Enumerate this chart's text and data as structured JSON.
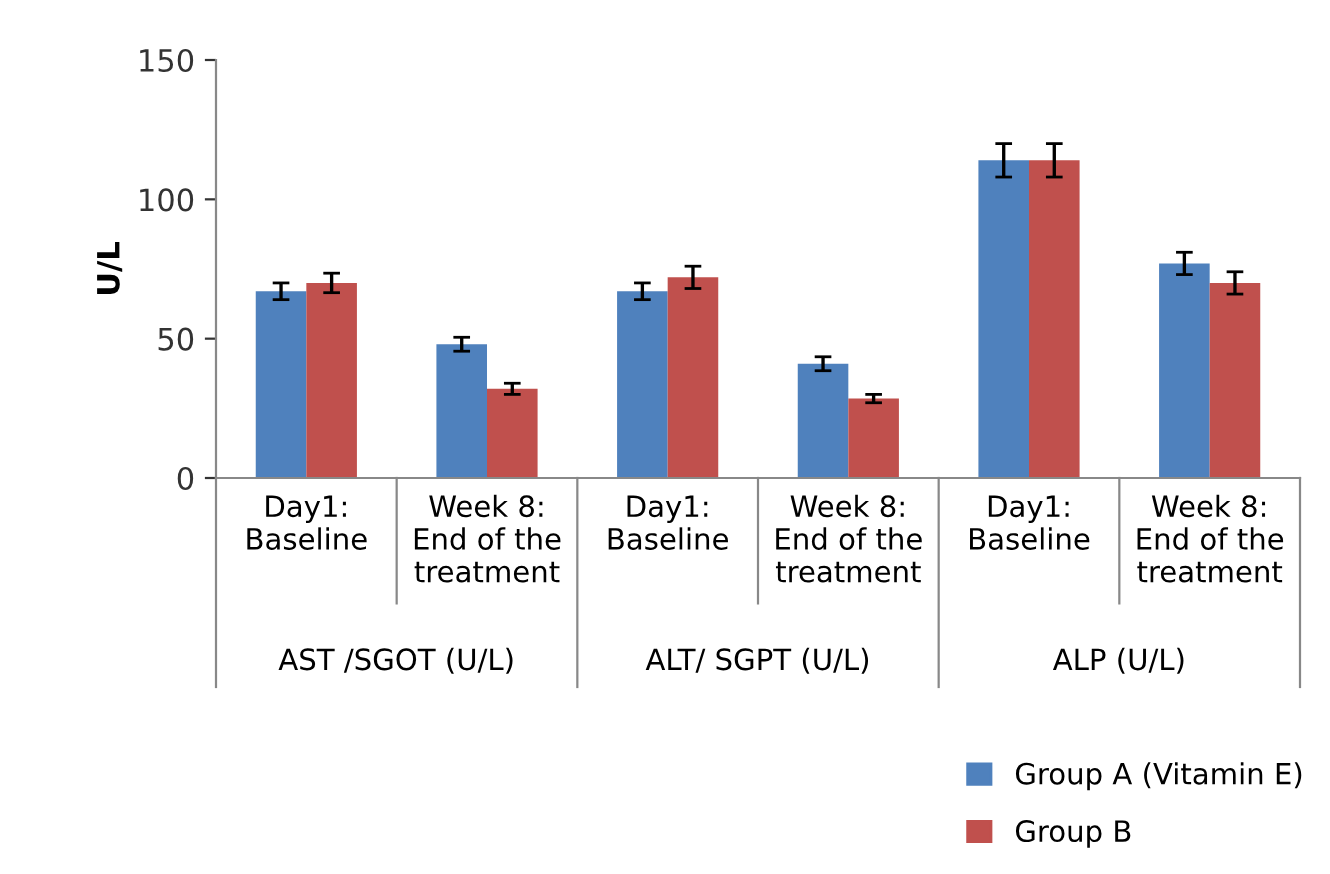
{
  "chart_data": {
    "type": "bar",
    "ylabel": "U/L",
    "categories": [
      "Day1:\nBaseline",
      "Week 8:\nEnd of the\ntreatment",
      "Day1:\nBaseline",
      "Week 8:\nEnd of the\ntreatment",
      "Day1:\nBaseline",
      "Week 8:\nEnd of the\ntreatment"
    ],
    "series": [
      {
        "name": "Group A (Vitamin E)",
        "color": "#4f81bd",
        "values": [
          67,
          48,
          67,
          41,
          114,
          77
        ],
        "errors": [
          3,
          2.5,
          3,
          2.5,
          6,
          4
        ]
      },
      {
        "name": "Group B",
        "color": "#c0504d",
        "values": [
          70,
          32,
          72,
          28.5,
          114,
          70
        ],
        "errors": [
          3.5,
          2,
          4,
          1.5,
          6,
          4
        ]
      }
    ],
    "annotations": [
      "AST /SGOT (U/L)",
      "ALT/ SGPT (U/L)",
      "ALP (U/L)"
    ],
    "ylim": [
      0,
      150
    ],
    "yticks": [
      0,
      50,
      100,
      150
    ],
    "grid": false,
    "legend": "bottom right"
  }
}
